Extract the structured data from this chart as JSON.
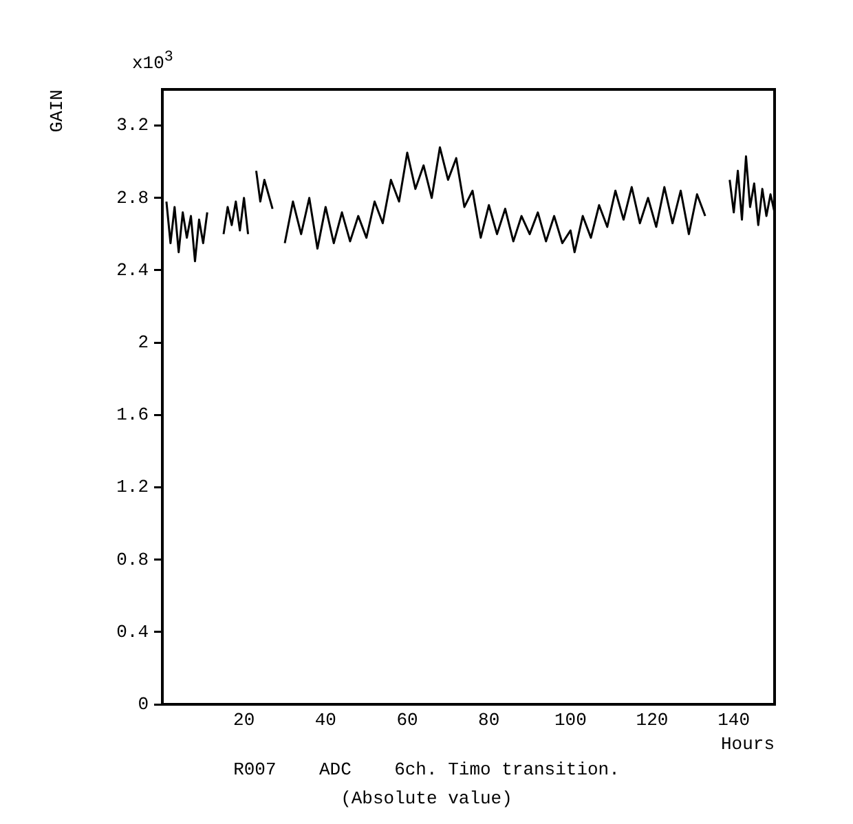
{
  "chart_data": {
    "type": "line",
    "title": "R007    ADC    6ch. Timo transition.",
    "subtitle": "(Absolute value)",
    "xlabel": "Hours",
    "ylabel": "GAIN",
    "annotations": [
      "x10$^{3}$"
    ],
    "x": [
      1,
      2,
      3,
      4,
      5,
      6,
      7,
      8,
      9,
      10,
      11,
      13,
      15,
      16,
      17,
      18,
      19,
      20,
      21,
      22,
      23,
      24,
      25,
      26,
      27,
      28.5,
      30,
      32,
      34,
      36,
      38,
      40,
      42,
      44,
      46,
      48,
      50,
      52,
      54,
      56,
      58,
      60,
      62,
      64,
      66,
      68,
      70,
      72,
      74,
      76,
      78,
      80,
      82,
      84,
      86,
      88,
      90,
      92,
      94,
      96,
      98,
      100,
      101,
      103,
      105,
      107,
      109,
      111,
      113,
      115,
      117,
      119,
      121,
      123,
      125,
      127,
      129,
      131,
      133,
      136,
      139,
      140,
      141,
      142,
      143,
      144,
      145,
      146,
      147,
      148,
      149,
      150
    ],
    "series": [
      {
        "color": "#000000",
        "values": [
          2.78,
          2.55,
          2.75,
          2.5,
          2.72,
          2.58,
          2.7,
          2.45,
          2.68,
          2.55,
          2.72,
          null,
          2.6,
          2.75,
          2.65,
          2.78,
          2.62,
          2.8,
          2.6,
          null,
          2.95,
          2.78,
          2.9,
          2.82,
          2.74,
          null,
          2.55,
          2.78,
          2.6,
          2.8,
          2.52,
          2.75,
          2.55,
          2.72,
          2.56,
          2.7,
          2.58,
          2.78,
          2.66,
          2.9,
          2.78,
          3.05,
          2.85,
          2.98,
          2.8,
          3.08,
          2.9,
          3.02,
          2.75,
          2.84,
          2.58,
          2.76,
          2.6,
          2.74,
          2.56,
          2.7,
          2.6,
          2.72,
          2.56,
          2.7,
          2.55,
          2.62,
          2.5,
          2.7,
          2.58,
          2.76,
          2.64,
          2.84,
          2.68,
          2.86,
          2.66,
          2.8,
          2.64,
          2.86,
          2.66,
          2.84,
          2.6,
          2.82,
          2.7,
          null,
          2.9,
          2.72,
          2.95,
          2.68,
          3.03,
          2.75,
          2.88,
          2.65,
          2.85,
          2.7,
          2.82,
          2.72
        ]
      }
    ],
    "xlim": [
      0,
      150
    ],
    "xticks": [
      20,
      40,
      60,
      80,
      100,
      120,
      140
    ],
    "ylim": [
      0,
      3.4
    ],
    "yticks": [
      0,
      0.4,
      0.8,
      1.2,
      1.6,
      2,
      2.4,
      2.8,
      3.2
    ],
    "grid": false,
    "legend": false,
    "marker": "none",
    "line_style": "solid"
  }
}
